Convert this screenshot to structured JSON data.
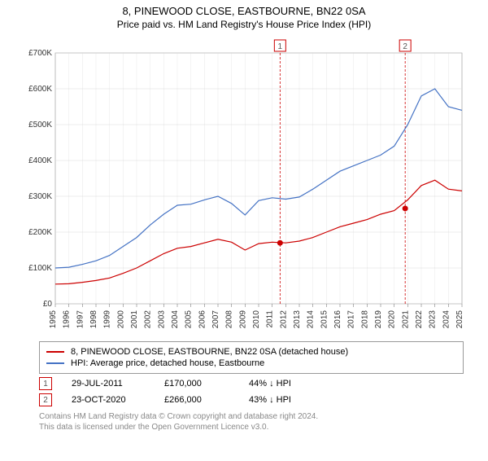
{
  "title": "8, PINEWOOD CLOSE, EASTBOURNE, BN22 0SA",
  "subtitle": "Price paid vs. HM Land Registry's House Price Index (HPI)",
  "chart": {
    "type": "line",
    "background_color": "#ffffff",
    "grid_color": "#d9d9d9",
    "axis_color": "#666666",
    "xlim": [
      1995,
      2025
    ],
    "ylim": [
      0,
      700000
    ],
    "ytick_step": 100000,
    "ytick_labels": [
      "£0",
      "£100K",
      "£200K",
      "£300K",
      "£400K",
      "£500K",
      "£600K",
      "£700K"
    ],
    "xtick_labels": [
      "1995",
      "1996",
      "1997",
      "1998",
      "1999",
      "2000",
      "2001",
      "2002",
      "2003",
      "2004",
      "2005",
      "2006",
      "2007",
      "2008",
      "2009",
      "2010",
      "2011",
      "2012",
      "2013",
      "2014",
      "2015",
      "2016",
      "2017",
      "2018",
      "2019",
      "2020",
      "2021",
      "2022",
      "2023",
      "2024",
      "2025"
    ],
    "tick_fontsize": 10,
    "series": [
      {
        "name": "price_paid",
        "label": "8, PINEWOOD CLOSE, EASTBOURNE, BN22 0SA (detached house)",
        "color": "#cc0000",
        "line_width": 1.2,
        "x": [
          1995,
          1996,
          1997,
          1998,
          1999,
          2000,
          2001,
          2002,
          2003,
          2004,
          2005,
          2006,
          2007,
          2008,
          2009,
          2010,
          2011,
          2012,
          2013,
          2014,
          2015,
          2016,
          2017,
          2018,
          2019,
          2020,
          2021,
          2022,
          2023,
          2024,
          2025
        ],
        "y": [
          55000,
          56000,
          60000,
          65000,
          72000,
          85000,
          100000,
          120000,
          140000,
          155000,
          160000,
          170000,
          180000,
          172000,
          150000,
          168000,
          172000,
          170000,
          175000,
          185000,
          200000,
          215000,
          225000,
          235000,
          250000,
          260000,
          290000,
          330000,
          345000,
          320000,
          315000
        ]
      },
      {
        "name": "hpi",
        "label": "HPI: Average price, detached house, Eastbourne",
        "color": "#4472c4",
        "line_width": 1.2,
        "x": [
          1995,
          1996,
          1997,
          1998,
          1999,
          2000,
          2001,
          2002,
          2003,
          2004,
          2005,
          2006,
          2007,
          2008,
          2009,
          2010,
          2011,
          2012,
          2013,
          2014,
          2015,
          2016,
          2017,
          2018,
          2019,
          2020,
          2021,
          2022,
          2023,
          2024,
          2025
        ],
        "y": [
          100000,
          102000,
          110000,
          120000,
          135000,
          160000,
          185000,
          220000,
          250000,
          275000,
          278000,
          290000,
          300000,
          280000,
          248000,
          288000,
          296000,
          292000,
          298000,
          320000,
          345000,
          370000,
          385000,
          400000,
          415000,
          440000,
          500000,
          580000,
          600000,
          550000,
          540000
        ]
      }
    ],
    "markers": [
      {
        "n": "1",
        "x": 2011.58,
        "y": 170000,
        "color": "#cc0000",
        "line_color": "#cc0000"
      },
      {
        "n": "2",
        "x": 2020.81,
        "y": 266000,
        "color": "#cc0000",
        "line_color": "#cc0000"
      }
    ],
    "marker_label_y_top": 6,
    "marker_box_size": 14,
    "marker_box_fontsize": 10,
    "marker_dash": "3,2"
  },
  "legend": {
    "items": [
      {
        "color": "#cc0000",
        "label": "8, PINEWOOD CLOSE, EASTBOURNE, BN22 0SA (detached house)"
      },
      {
        "color": "#4472c4",
        "label": "HPI: Average price, detached house, Eastbourne"
      }
    ]
  },
  "data_rows": [
    {
      "n": "1",
      "border_color": "#cc0000",
      "date": "29-JUL-2011",
      "price": "£170,000",
      "pct": "44% ↓ HPI"
    },
    {
      "n": "2",
      "border_color": "#cc0000",
      "date": "23-OCT-2020",
      "price": "£266,000",
      "pct": "43% ↓ HPI"
    }
  ],
  "footer": {
    "line1": "Contains HM Land Registry data © Crown copyright and database right 2024.",
    "line2": "This data is licensed under the Open Government Licence v3.0."
  }
}
